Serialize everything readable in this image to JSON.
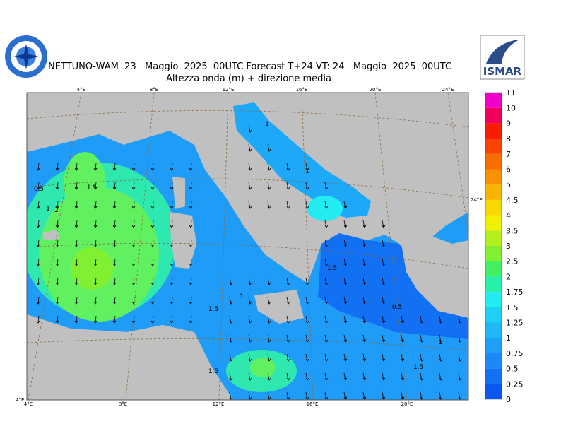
{
  "header": {
    "title": "NETTUNO-WAM  23   Maggio  2025  00UTC Forecast T+24 VT: 24   Maggio  2025  00UTC",
    "subtitle": "Altezza onda (m) + direzione media",
    "logo_right": "ISMAR"
  },
  "map": {
    "top_lon_labels": [
      "4°E",
      "8°E",
      "12°E",
      "16°E",
      "20°E",
      "24°E"
    ],
    "bottom_lon_labels": [
      "4°E",
      "8°E",
      "12°E",
      "16°E",
      "20°E"
    ],
    "corner_label": "4°E",
    "right_label": "24°E",
    "contour_labels": [
      "0.5",
      "1",
      "1.5",
      "2",
      "1.5",
      "1",
      "1.5",
      "1",
      "0.5",
      "1",
      "1.5",
      "1.5",
      "1"
    ]
  },
  "legend": {
    "levels": [
      0,
      0.25,
      0.5,
      0.75,
      1,
      1.25,
      1.5,
      1.75,
      2,
      2.5,
      3,
      3.5,
      4,
      4.5,
      5,
      6,
      7,
      8,
      9,
      10,
      11
    ],
    "colors": [
      "#0a58f0",
      "#1470f5",
      "#1e88f8",
      "#1ea0f8",
      "#1eb8f8",
      "#1ed0f8",
      "#22ecf0",
      "#28f0a8",
      "#40f060",
      "#80f030",
      "#b4f020",
      "#f0f000",
      "#f8d800",
      "#f8b400",
      "#f89000",
      "#f86c00",
      "#f84400",
      "#f81c00",
      "#f0005a",
      "#f000c8"
    ]
  }
}
